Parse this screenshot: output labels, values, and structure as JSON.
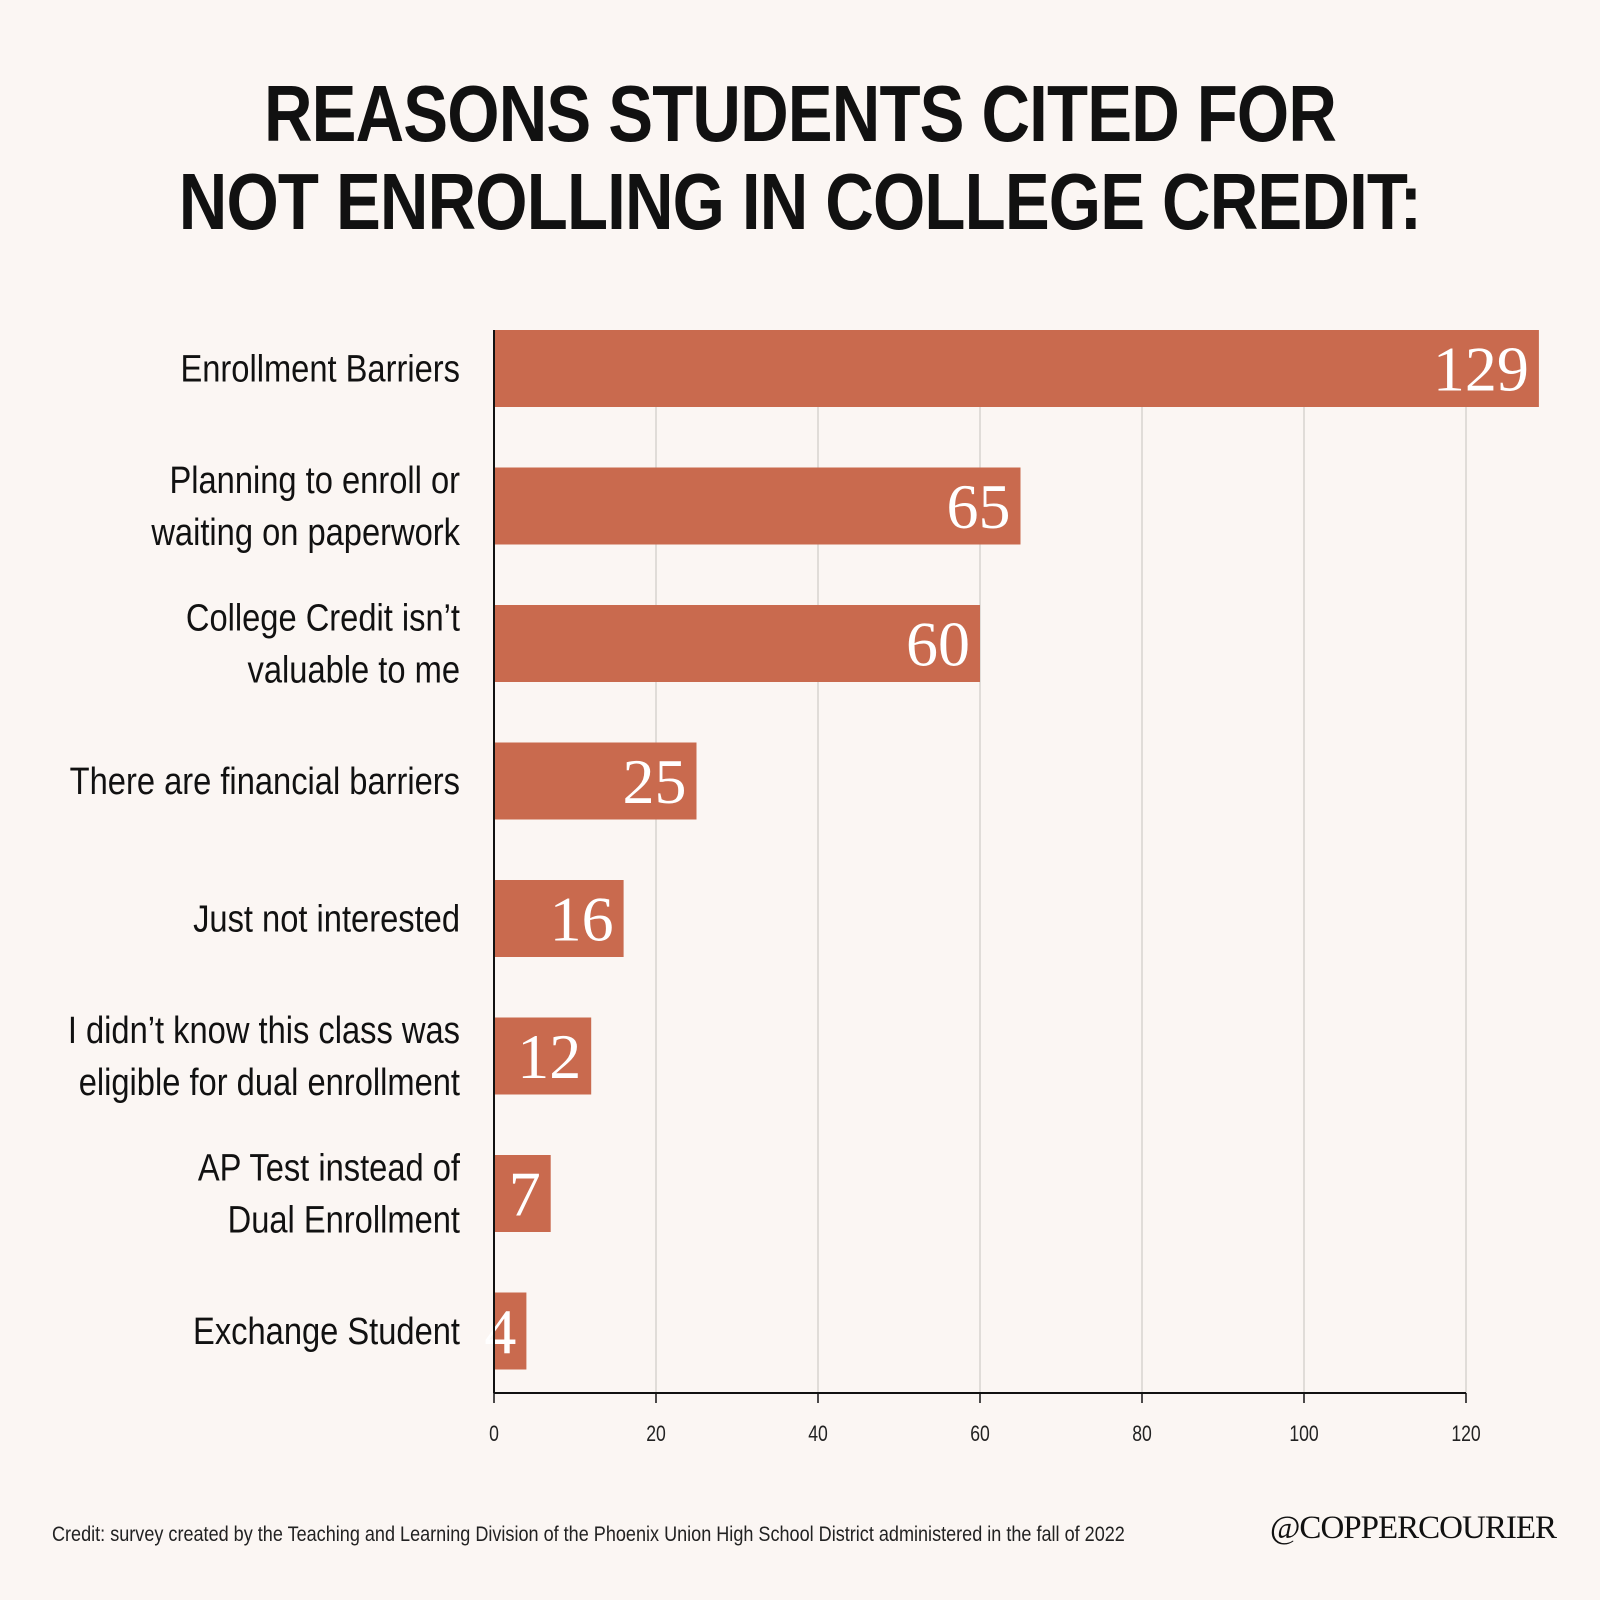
{
  "title_lines": [
    "REASONS STUDENTS CITED FOR",
    "NOT ENROLLING IN COLLEGE CREDIT:"
  ],
  "credit": "Credit: survey created by the Teaching and Learning Division of the Phoenix Union High School District administered in the fall of 2022",
  "brand": "@COPPERCOURIER",
  "colors": {
    "bar": "#c96a4e",
    "background": "#fbf6f3",
    "grid": "#cfcac6",
    "bar_label": "#ffffff"
  },
  "chart_data": {
    "type": "bar",
    "orientation": "horizontal",
    "categories": [
      [
        "Enrollment Barriers"
      ],
      [
        "Planning to enroll or",
        "waiting on paperwork"
      ],
      [
        "College Credit isn’t",
        "valuable to me"
      ],
      [
        "There are financial barriers"
      ],
      [
        "Just not interested"
      ],
      [
        "I didn’t know this class was",
        "eligible for dual enrollment"
      ],
      [
        "AP Test instead of",
        "Dual Enrollment"
      ],
      [
        "Exchange Student"
      ]
    ],
    "values": [
      129,
      65,
      60,
      25,
      16,
      12,
      7,
      4
    ],
    "xlim": [
      0,
      120
    ],
    "xticks": [
      0,
      20,
      40,
      60,
      80,
      100,
      120
    ],
    "grid": true,
    "data_labels": true
  }
}
